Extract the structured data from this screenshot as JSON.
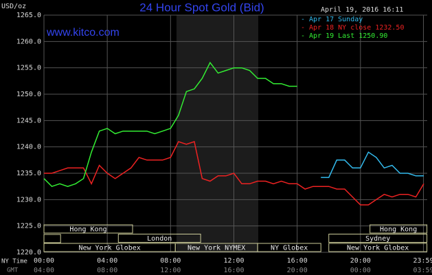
{
  "chart_data": {
    "type": "line",
    "title": "24 Hour Spot Gold (Bid)",
    "unit_label": "USD/oz",
    "source": "www.kitco.com",
    "timestamp": "April 19, 2016 16:11",
    "x_axis_label": "NY Time",
    "x2_axis_label": "GMT",
    "x": [
      0,
      0.5,
      1,
      1.5,
      2,
      2.5,
      3,
      3.5,
      4,
      4.5,
      5,
      5.5,
      6,
      6.5,
      7,
      7.5,
      8,
      8.5,
      9,
      9.5,
      10,
      10.5,
      11,
      11.5,
      12,
      12.5,
      13,
      13.5,
      14,
      14.5,
      15,
      15.5,
      16,
      16.5,
      17,
      17.5,
      18,
      18.5,
      19,
      19.5,
      20,
      20.5,
      21,
      21.5,
      22,
      22.5,
      23,
      23.5,
      24
    ],
    "series": [
      {
        "name": "Apr 17 Sunday",
        "color": "#33bbee",
        "values": [
          null,
          null,
          null,
          null,
          null,
          null,
          null,
          null,
          null,
          null,
          null,
          null,
          null,
          null,
          null,
          null,
          null,
          null,
          null,
          null,
          null,
          null,
          null,
          null,
          null,
          null,
          null,
          null,
          null,
          null,
          null,
          null,
          null,
          null,
          null,
          1234.2,
          1234.2,
          1237.5,
          1237.5,
          1236,
          1236,
          1239,
          1238,
          1236,
          1236.5,
          1235,
          1235,
          1234.5,
          1234.5
        ]
      },
      {
        "name": "Apr 18 NY close 1232.50",
        "color": "#ee2222",
        "values": [
          1235,
          1235,
          1235.5,
          1236,
          1236,
          1236,
          1233,
          1236.5,
          1235,
          1234,
          1235,
          1236,
          1238,
          1237.5,
          1237.5,
          1237.5,
          1238,
          1241,
          1240.5,
          1241,
          1234,
          1233.5,
          1234.5,
          1234.5,
          1235,
          1233,
          1233,
          1233.5,
          1233.5,
          1233,
          1233.5,
          1233,
          1233,
          1232,
          1232.5,
          1232.5,
          1232.5,
          1232,
          1232,
          1230.5,
          1229,
          1229,
          1230,
          1231,
          1230.5,
          1231,
          1231,
          1230.5,
          1233
        ]
      },
      {
        "name": "Apr 19 Last 1250.90",
        "color": "#33ee33",
        "values": [
          1234,
          1232.5,
          1233,
          1232.5,
          1233,
          1234,
          1239,
          1243,
          1243.5,
          1242.5,
          1243,
          1243,
          1243,
          1243,
          1242.5,
          1243,
          1243.5,
          1246,
          1250.5,
          1251,
          1253,
          1256,
          1254,
          1254.5,
          1255,
          1255,
          1254.5,
          1253,
          1253,
          1252,
          1252,
          1251.5,
          1251.5,
          null,
          null,
          null,
          null,
          null,
          null,
          null,
          null,
          null,
          null,
          null,
          null,
          null,
          null,
          null,
          null
        ]
      }
    ],
    "xlim": [
      0,
      24
    ],
    "xticks": [
      {
        "value": 0,
        "label": "00:00"
      },
      {
        "value": 4,
        "label": "04:00"
      },
      {
        "value": 8,
        "label": "08:00"
      },
      {
        "value": 12,
        "label": "12:00"
      },
      {
        "value": 16,
        "label": "16:00"
      },
      {
        "value": 20,
        "label": "20:00"
      },
      {
        "value": 23.98,
        "label": "23:59"
      }
    ],
    "x2_labels": [
      "04:00",
      "08:00",
      "12:00",
      "16:00",
      "20:00",
      "00:00",
      "03:59"
    ],
    "ylim": [
      1220,
      1265
    ],
    "yticks": [
      {
        "value": 1220,
        "label": "1220.0"
      },
      {
        "value": 1225,
        "label": "1225.0"
      },
      {
        "value": 1230,
        "label": "1230.0"
      },
      {
        "value": 1235,
        "label": "1235.0"
      },
      {
        "value": 1240,
        "label": "1240.0"
      },
      {
        "value": 1245,
        "label": "1245.0"
      },
      {
        "value": 1250,
        "label": "1250.0"
      },
      {
        "value": 1255,
        "label": "1255.0"
      },
      {
        "value": 1260,
        "label": "1260.0"
      },
      {
        "value": 1265,
        "label": "1265.0"
      }
    ],
    "grid": true,
    "sessions": [
      "Hong Kong",
      "Hong Kong",
      "London",
      "Sydney",
      "New York Globex",
      "New York NYMEX",
      "NY Globex",
      "New York Globex"
    ]
  }
}
